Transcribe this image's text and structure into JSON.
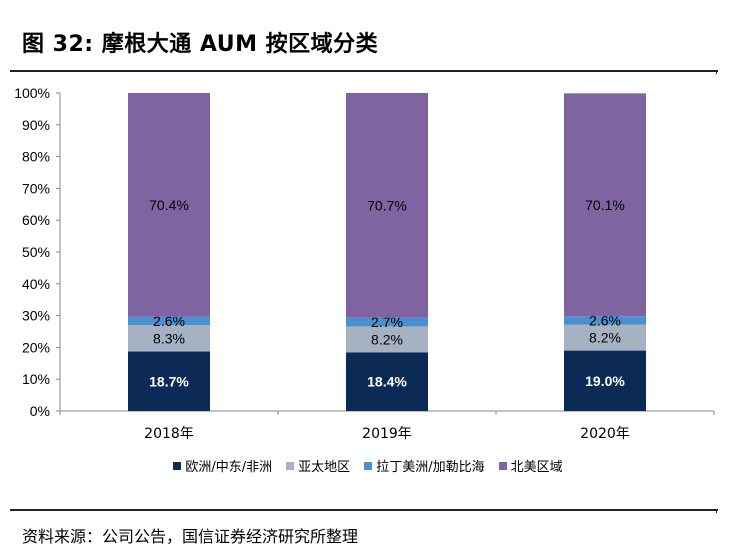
{
  "figure": {
    "title": "图 32:  摩根大通 AUM 按区域分类",
    "source": "资料来源：公司公告，国信证券经济研究所整理"
  },
  "chart_data": {
    "type": "bar",
    "stacked": true,
    "percent": true,
    "categories": [
      "2018年",
      "2019年",
      "2020年"
    ],
    "yticks": [
      "0%",
      "10%",
      "20%",
      "30%",
      "40%",
      "50%",
      "60%",
      "70%",
      "80%",
      "90%",
      "100%"
    ],
    "ylim": [
      0,
      100
    ],
    "series": [
      {
        "name": "欧洲/中东/非洲",
        "color": "#0b2a55",
        "label_color": "#ffffff",
        "values": [
          18.7,
          18.4,
          19.0
        ],
        "labels": [
          "18.7%",
          "18.4%",
          "19.0%"
        ]
      },
      {
        "name": "亚太地区",
        "color": "#a6b2c1",
        "label_color": "#000000",
        "values": [
          8.3,
          8.2,
          8.2
        ],
        "labels": [
          "8.3%",
          "8.2%",
          "8.2%"
        ]
      },
      {
        "name": "拉丁美洲/加勒比海",
        "color": "#4a90d0",
        "label_color": "#000000",
        "values": [
          2.6,
          2.7,
          2.6
        ],
        "labels": [
          "2.6%",
          "2.7%",
          "2.6%"
        ]
      },
      {
        "name": "北美区域",
        "color": "#8064a2",
        "label_color": "#000000",
        "values": [
          70.4,
          70.7,
          70.1
        ],
        "labels": [
          "70.4%",
          "70.7%",
          "70.1%"
        ]
      }
    ],
    "legend_position": "bottom"
  }
}
